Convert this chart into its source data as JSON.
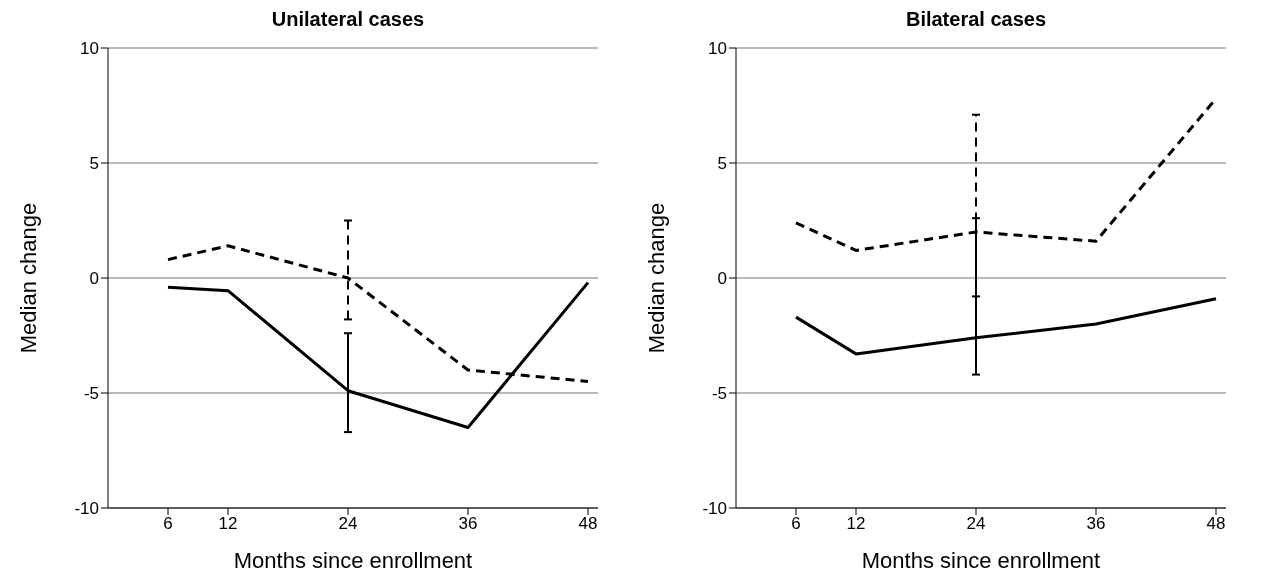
{
  "chart_data": [
    {
      "type": "line",
      "title": "Unilateral cases",
      "xlabel": "Months since enrollment",
      "ylabel": "Median change",
      "xlim": [
        0,
        49
      ],
      "xticks": [
        6,
        12,
        24,
        36,
        48
      ],
      "ylim": [
        -10,
        10
      ],
      "yticks": [
        -10,
        -5,
        0,
        5,
        10
      ],
      "grid": "y",
      "marker": "none",
      "x": [
        6,
        12,
        24,
        36,
        48
      ],
      "series": [
        {
          "color": "#000000",
          "line_style": "solid",
          "values": [
            -0.4,
            -0.55,
            -4.9,
            -6.5,
            -0.2
          ],
          "errors": [
            null,
            null,
            [
              -6.7,
              -2.4
            ],
            null,
            null
          ]
        },
        {
          "color": "#000000",
          "line_style": "dashed",
          "values": [
            0.8,
            1.4,
            0.0,
            -4.0,
            -4.5
          ],
          "errors": [
            null,
            null,
            [
              -1.8,
              2.5
            ],
            null,
            null
          ]
        }
      ]
    },
    {
      "type": "line",
      "title": "Bilateral cases",
      "xlabel": "Months since enrollment",
      "ylabel": "Median change",
      "xlim": [
        0,
        49
      ],
      "xticks": [
        6,
        12,
        24,
        36,
        48
      ],
      "ylim": [
        -10,
        10
      ],
      "yticks": [
        -10,
        -5,
        0,
        5,
        10
      ],
      "grid": "y",
      "marker": "none",
      "x": [
        6,
        12,
        24,
        36,
        48
      ],
      "series": [
        {
          "color": "#000000",
          "line_style": "solid",
          "values": [
            -1.7,
            -3.3,
            -2.6,
            -2.0,
            -0.9
          ],
          "errors": [
            null,
            null,
            [
              -4.2,
              2.6
            ],
            null,
            null
          ]
        },
        {
          "color": "#000000",
          "line_style": "dashed",
          "values": [
            2.4,
            1.2,
            2.0,
            1.6,
            7.8
          ],
          "errors": [
            null,
            null,
            [
              -0.8,
              7.1
            ],
            null,
            null
          ]
        }
      ]
    }
  ]
}
